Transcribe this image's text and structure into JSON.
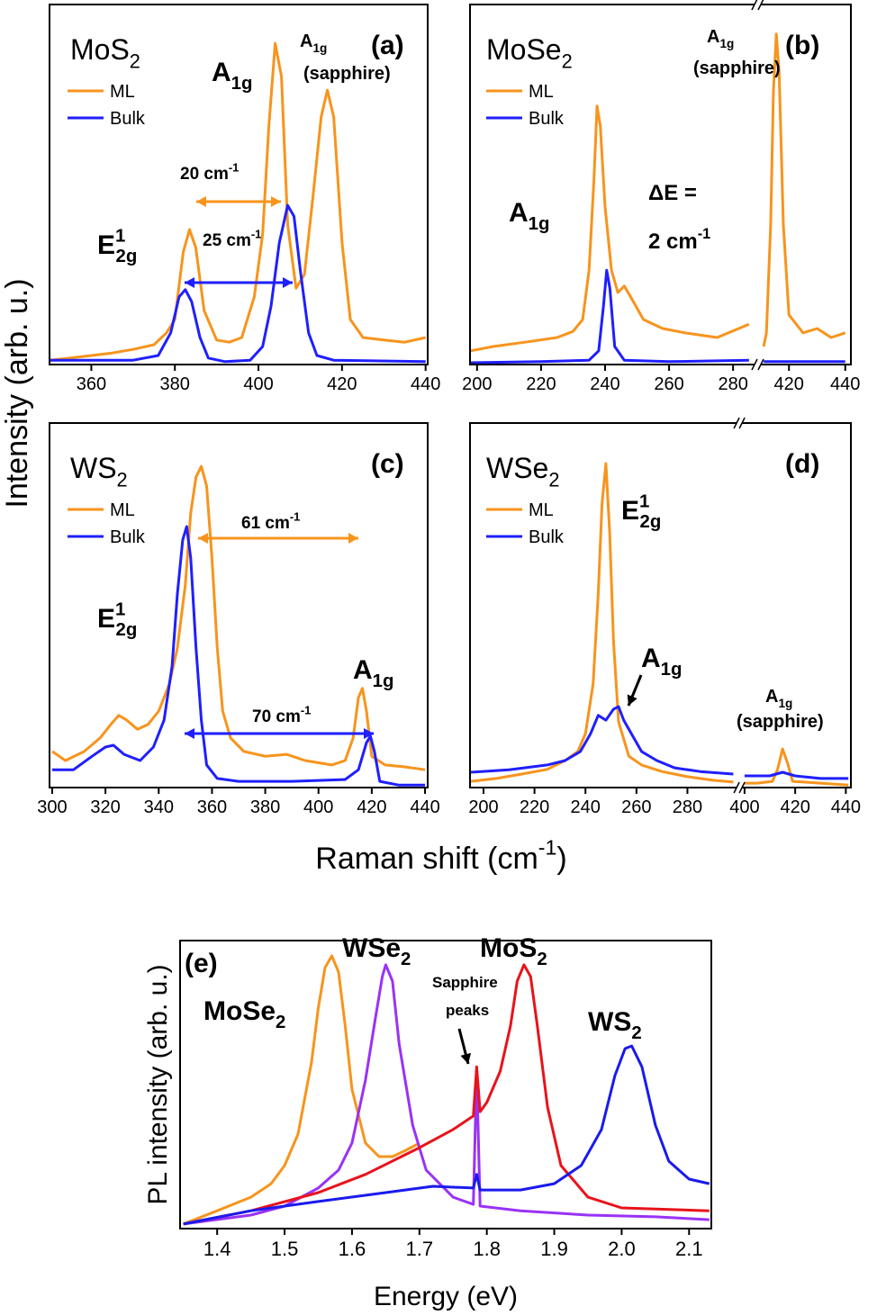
{
  "shared": {
    "ylabel": "Intensity (arb. u.)",
    "xlabel": [
      "Raman shift (cm",
      {
        "sup": "-1"
      },
      ")"
    ]
  },
  "chart_data": [
    {
      "type": "line",
      "panel": "(a)",
      "label": [
        "MoS",
        {
          "sub": "2"
        }
      ],
      "xlim": [
        350,
        440.5
      ],
      "xticks": [
        360,
        380,
        400,
        420,
        440
      ],
      "ylim": [
        0,
        100
      ],
      "series": [
        {
          "name": "ML",
          "color": "#f7941d",
          "x": [
            350,
            355,
            360,
            365,
            370,
            375,
            378,
            380,
            382,
            383.5,
            385,
            387,
            390,
            393,
            396,
            399,
            401,
            402.5,
            404,
            405.5,
            407,
            409,
            411,
            413,
            415,
            416.5,
            418,
            420,
            422,
            425,
            430,
            435,
            440
          ],
          "values": [
            1.2,
            1.8,
            2.5,
            3.2,
            4.2,
            5.5,
            8.8,
            12.5,
            31.2,
            37.5,
            32.5,
            15,
            6.8,
            6.2,
            7.5,
            18.8,
            36.2,
            66.2,
            89.2,
            80,
            38.8,
            21.2,
            25,
            46.2,
            68.8,
            76.2,
            68.8,
            33.8,
            12.5,
            7.5,
            6.8,
            6.2,
            7.5
          ]
        },
        {
          "name": "Bulk",
          "color": "#1f1fff",
          "x": [
            350,
            370,
            376,
            379,
            381,
            382.5,
            384,
            386,
            388,
            392,
            398,
            401,
            403,
            405,
            407,
            408.5,
            410,
            412,
            414,
            418,
            440
          ],
          "values": [
            1.2,
            1.2,
            2.5,
            8.8,
            18.8,
            20.8,
            17.5,
            7.5,
            1.8,
            0.8,
            1.2,
            5,
            16.2,
            33.8,
            44.2,
            41.2,
            26.2,
            8.8,
            2.5,
            1.2,
            0.8
          ]
        }
      ],
      "annotations": [
        {
          "text": [
            "A",
            {
              "sub": "1g"
            }
          ],
          "color": "#000000"
        },
        {
          "text": [
            "A",
            {
              "sub": "1g"
            }
          ],
          "color": "#d0121b"
        },
        {
          "text": "(sapphire)",
          "color": "#d0121b"
        },
        {
          "text": [
            "20 cm",
            {
              "sup": "-1"
            }
          ],
          "color": "#f7941d"
        },
        {
          "text": [
            "25 cm",
            {
              "sup": "-1"
            }
          ],
          "color": "#1f1fff"
        },
        {
          "text": [
            "E",
            {
              "sup": "1"
            },
            {
              "sub": "2g"
            }
          ],
          "color": "#000000"
        }
      ]
    },
    {
      "type": "line",
      "panel": "(b)",
      "label": [
        "MoSe",
        {
          "sub": "2"
        }
      ],
      "xlim": [
        [
          197.8,
          286.7
        ],
        [
          410,
          442
        ]
      ],
      "xticks": [
        200,
        220,
        240,
        260,
        280,
        420,
        440
      ],
      "ylim": [
        0,
        100
      ],
      "series": [
        {
          "name": "ML",
          "color": "#f7941d",
          "x": [
            198,
            205,
            215,
            225,
            230,
            233,
            235,
            236.5,
            237.5,
            238.5,
            240,
            242,
            244,
            246,
            248,
            252,
            258,
            265,
            275,
            285,
            null,
            411,
            412,
            413.5,
            414.5,
            415.5,
            416.5,
            418,
            420,
            425,
            430,
            435,
            440
          ],
          "values": [
            3.8,
            5,
            6.2,
            7.5,
            9.2,
            12.5,
            26.2,
            51.2,
            71.8,
            66.2,
            43.8,
            26.2,
            20,
            21.8,
            18.8,
            12.5,
            10,
            8.8,
            7.5,
            11.2,
            null,
            5,
            8.8,
            38.8,
            76.2,
            91.8,
            81.2,
            38.8,
            13.8,
            8.8,
            10,
            7.5,
            8.8
          ]
        },
        {
          "name": "Bulk",
          "color": "#1f1fff",
          "x": [
            198,
            220,
            235,
            238,
            239.5,
            240.5,
            241.5,
            243,
            246,
            260,
            285,
            null,
            411,
            440
          ],
          "values": [
            0.5,
            0.8,
            1.2,
            3.8,
            16.2,
            26.2,
            21.2,
            5,
            1.2,
            0.8,
            1.2,
            null,
            0.8,
            0.8
          ]
        }
      ],
      "annotations": [
        {
          "text": [
            "A",
            {
              "sub": "1g"
            }
          ],
          "color": "#d0121b"
        },
        {
          "text": "(sapphire)",
          "color": "#d0121b"
        },
        {
          "text": [
            "A",
            {
              "sub": "1g"
            }
          ],
          "color": "#000000"
        },
        {
          "text": "ΔE =",
          "color": "#000000"
        },
        {
          "text": [
            "2 cm",
            {
              "sup": "-1"
            }
          ],
          "color": "#000000"
        }
      ]
    },
    {
      "type": "line",
      "panel": "(c)",
      "label": [
        "WS",
        {
          "sub": "2"
        }
      ],
      "xlim": [
        299,
        441
      ],
      "xticks": [
        300,
        320,
        340,
        360,
        380,
        400,
        420,
        440
      ],
      "ylim": [
        0,
        100
      ],
      "series": [
        {
          "name": "ML",
          "color": "#f7941d",
          "x": [
            300,
            305,
            312,
            318,
            322,
            325,
            328,
            332,
            336,
            340,
            344,
            347,
            350,
            352,
            354,
            356,
            358,
            360,
            362,
            364,
            367,
            372,
            380,
            388,
            395,
            405,
            410,
            413,
            415,
            416.5,
            418,
            420,
            425,
            432,
            440
          ],
          "values": [
            9.9,
            7.4,
            9.9,
            13.6,
            17.3,
            19.8,
            18.5,
            16,
            17.3,
            21,
            28.4,
            38.3,
            55.6,
            75.3,
            85.2,
            88.1,
            82.7,
            63,
            38.3,
            21,
            13.6,
            9.9,
            8.6,
            9.1,
            7.4,
            6.2,
            7.4,
            13.6,
            24.7,
            27.2,
            21,
            8.6,
            6.2,
            5.7,
            4.9
          ]
        },
        {
          "name": "Bulk",
          "color": "#1f1fff",
          "x": [
            300,
            308,
            315,
            320,
            323,
            327,
            333,
            338,
            342,
            345,
            347,
            349,
            350.5,
            352,
            354,
            356,
            358,
            362,
            370,
            390,
            410,
            415,
            418,
            419.5,
            421,
            423,
            430,
            440
          ],
          "values": [
            4.9,
            4.9,
            8.6,
            11.1,
            11.6,
            9.1,
            7.4,
            11.1,
            18.5,
            33.3,
            53.1,
            67.9,
            71.6,
            63,
            38.3,
            18.5,
            6.2,
            2.5,
            1.7,
            1.7,
            2.2,
            4.9,
            12.3,
            14.1,
            9.9,
            1.7,
            0.7,
            0.7
          ]
        }
      ],
      "annotations": [
        {
          "text": [
            "61 cm",
            {
              "sup": "-1"
            }
          ],
          "color": "#f7941d"
        },
        {
          "text": [
            "E",
            {
              "sup": "1"
            },
            {
              "sub": "2g"
            }
          ],
          "color": "#000000"
        },
        {
          "text": [
            "70 cm",
            {
              "sup": "-1"
            }
          ],
          "color": "#1f1fff"
        },
        {
          "text": [
            "A",
            {
              "sub": "1g"
            }
          ],
          "color": "#000000"
        }
      ]
    },
    {
      "type": "line",
      "panel": "(d)",
      "label": [
        "WSe",
        {
          "sub": "2"
        }
      ],
      "xlim": [
        [
          194.7,
          299.3
        ],
        [
          399,
          442
        ]
      ],
      "xticks": [
        200,
        220,
        240,
        260,
        280,
        400,
        420,
        440
      ],
      "ylim": [
        0,
        100
      ],
      "series": [
        {
          "name": "ML",
          "color": "#f7941d",
          "x": [
            195,
            205,
            215,
            225,
            232,
            237,
            240,
            243,
            245,
            246.5,
            248,
            249.5,
            251,
            253,
            257,
            262,
            270,
            280,
            290,
            298,
            null,
            400,
            405,
            411,
            413,
            415,
            417,
            419,
            430,
            441
          ],
          "values": [
            1.7,
            2.5,
            3.7,
            5,
            7.4,
            9.9,
            14.8,
            28.4,
            53.1,
            77.8,
            88.9,
            70,
            40,
            18,
            8.6,
            6.2,
            4.4,
            3,
            2,
            1.5,
            null,
            1.2,
            1.2,
            1.7,
            4.9,
            10.6,
            6.7,
            1.7,
            1.2,
            0.7
          ]
        },
        {
          "name": "Bulk",
          "color": "#1f1fff",
          "x": [
            195,
            210,
            225,
            232,
            238,
            242,
            245,
            248,
            251,
            253,
            255,
            258,
            262,
            268,
            275,
            285,
            298,
            null,
            400,
            410,
            415,
            420,
            430,
            441
          ],
          "values": [
            4.2,
            4.9,
            6.2,
            7.4,
            9.9,
            14.8,
            19.8,
            18.5,
            21.5,
            22.2,
            18.5,
            14.8,
            9.9,
            7.4,
            5.4,
            4.4,
            3.7,
            null,
            3.2,
            3.2,
            4.2,
            3.2,
            2.5,
            2.5
          ]
        }
      ],
      "annotations": [
        {
          "text": [
            "E",
            {
              "sup": "1"
            },
            {
              "sub": "2g"
            }
          ],
          "color": "#000000"
        },
        {
          "text": [
            "A",
            {
              "sub": "1g"
            }
          ],
          "color": "#000000"
        },
        {
          "text": [
            "A",
            {
              "sub": "1g"
            }
          ],
          "color": "#d0121b"
        },
        {
          "text": "(sapphire)",
          "color": "#d0121b"
        }
      ]
    },
    {
      "type": "line",
      "panel": "(e)",
      "xlabel": "Energy (eV)",
      "ylabel": "PL intensity (arb. u.)",
      "xlim": [
        1.345,
        2.133
      ],
      "xticks": [
        1.4,
        1.5,
        1.6,
        1.7,
        1.8,
        1.9,
        {
          "value": 2,
          "label": "2.0"
        },
        2.1
      ],
      "ylim": [
        0,
        100
      ],
      "series": [
        {
          "name": [
            "MoSe",
            {
              "sub": "2"
            }
          ],
          "color": "#f7941d",
          "x": [
            1.35,
            1.4,
            1.45,
            1.48,
            1.5,
            1.52,
            1.54,
            1.55,
            1.56,
            1.57,
            1.58,
            1.59,
            1.6,
            1.62,
            1.64,
            1.66,
            1.68,
            1.7
          ],
          "values": [
            1.6,
            6.2,
            10.9,
            15.6,
            21.9,
            32.8,
            57.8,
            76.6,
            90.6,
            94.7,
            89.1,
            70.3,
            48.4,
            29.7,
            25,
            25,
            27.2,
            29.7
          ]
        },
        {
          "name": [
            "WSe",
            {
              "sub": "2"
            }
          ],
          "color": "#9932f5",
          "x": [
            1.35,
            1.45,
            1.5,
            1.55,
            1.58,
            1.6,
            1.62,
            1.635,
            1.645,
            1.65,
            1.66,
            1.67,
            1.69,
            1.71,
            1.75,
            1.78,
            1.785,
            1.79,
            1.85,
            1.95,
            2.05,
            2.13
          ],
          "values": [
            1.6,
            4.7,
            7.8,
            14.1,
            20.3,
            29.7,
            51.6,
            73.4,
            87.5,
            91.6,
            85.9,
            64.1,
            35.9,
            20.3,
            10.9,
            8.4,
            54.7,
            7.8,
            6.2,
            4.7,
            4.1,
            3.1
          ]
        },
        {
          "name": [
            "MoS",
            {
              "sub": "2"
            }
          ],
          "color": "#e8131b",
          "x": [
            1.35,
            1.45,
            1.55,
            1.62,
            1.7,
            1.75,
            1.78,
            1.785,
            1.79,
            1.8,
            1.82,
            1.835,
            1.845,
            1.855,
            1.865,
            1.875,
            1.89,
            1.91,
            1.95,
            2.0,
            2.13
          ],
          "values": [
            1.6,
            6.2,
            12.5,
            18.8,
            28.1,
            34.4,
            39.1,
            56.2,
            40.6,
            43.8,
            54.7,
            70.3,
            85.9,
            91.6,
            87.5,
            70.3,
            42.2,
            21.9,
            10.9,
            7.2,
            6.2
          ]
        },
        {
          "name": [
            "WS",
            {
              "sub": "2"
            }
          ],
          "color": "#1a1aee",
          "x": [
            1.35,
            1.45,
            1.55,
            1.65,
            1.72,
            1.78,
            1.785,
            1.79,
            1.85,
            1.9,
            1.94,
            1.97,
            1.99,
            2.005,
            2.015,
            2.03,
            2.05,
            2.07,
            2.1,
            2.13
          ],
          "values": [
            1.6,
            6.2,
            9.4,
            12.5,
            14.7,
            14.1,
            18.8,
            13.4,
            13.4,
            15.6,
            21.9,
            34.4,
            53.1,
            62.5,
            63.4,
            56.2,
            35.9,
            23.4,
            17.2,
            15.6
          ]
        }
      ],
      "annotations": [
        {
          "text": "Sapphire",
          "color": "#000000"
        },
        {
          "text": "peaks",
          "color": "#000000"
        }
      ]
    }
  ]
}
